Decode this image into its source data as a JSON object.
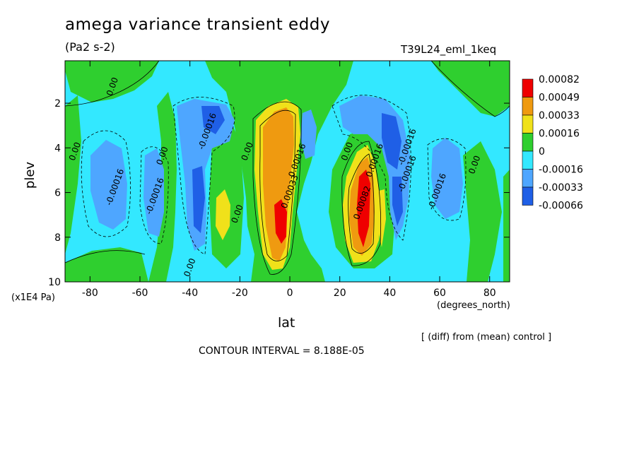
{
  "header": {
    "title": "amega variance transient eddy",
    "units": "(Pa2 s-2)",
    "run": "T39L24_eml_1keq"
  },
  "footer": {
    "y_units": "(x1E4 Pa)",
    "x_units": "(degrees_north)",
    "x_label": "lat",
    "note": "[ (diff) from (mean) control ]",
    "contour_interval": "CONTOUR INTERVAL = 8.188E-05"
  },
  "chart_data": {
    "type": "heatmap",
    "title": "amega variance transient eddy",
    "subtitle": "(Pa2 s-2)",
    "xlabel": "lat",
    "ylabel": "plev",
    "x_units": "(degrees_north)",
    "y_units": "(x1E4 Pa)",
    "xlim": [
      -90,
      88
    ],
    "ylim": [
      10,
      0.1
    ],
    "x_ticks": [
      -80,
      -60,
      -40,
      -20,
      0,
      20,
      40,
      60,
      80
    ],
    "y_ticks": [
      2,
      4,
      6,
      8,
      10
    ],
    "legend_placement": "right",
    "colorbar": {
      "labels": [
        "0.00082",
        "0.00049",
        "0.00033",
        "0.00016",
        "0",
        "-0.00016",
        "-0.00033",
        "-0.00066"
      ],
      "colors": [
        "#ef0000",
        "#ef9a10",
        "#f0e11a",
        "#2fcf2f",
        "#33e8ff",
        "#4ea6ff",
        "#1f5fe6"
      ]
    },
    "contour_labels": [
      {
        "x": -70,
        "y": 1.3,
        "text": "0.00"
      },
      {
        "x": -85,
        "y": 4.2,
        "text": "0.00"
      },
      {
        "x": -69,
        "y": 5.8,
        "text": "-0.00016"
      },
      {
        "x": -53,
        "y": 6.2,
        "text": "-0.00016"
      },
      {
        "x": -50,
        "y": 4.4,
        "text": "0.00"
      },
      {
        "x": -32,
        "y": 3.3,
        "text": "-0.00016"
      },
      {
        "x": -16,
        "y": 4.2,
        "text": "0.00"
      },
      {
        "x": -20,
        "y": 7.0,
        "text": "0.00"
      },
      {
        "x": -39,
        "y": 9.4,
        "text": "0.00"
      },
      {
        "x": 1,
        "y": 6.0,
        "text": "0.00033"
      },
      {
        "x": 4,
        "y": 4.6,
        "text": "0.00016"
      },
      {
        "x": 24,
        "y": 4.2,
        "text": "0.00"
      },
      {
        "x": 30,
        "y": 6.5,
        "text": "0.00082"
      },
      {
        "x": 35,
        "y": 4.6,
        "text": "0.00016"
      },
      {
        "x": 48,
        "y": 4.0,
        "text": "-0.00016"
      },
      {
        "x": 48,
        "y": 5.2,
        "text": "-0.00016"
      },
      {
        "x": 60,
        "y": 6.0,
        "text": "-0.00016"
      },
      {
        "x": 75,
        "y": 4.8,
        "text": "0.00"
      }
    ],
    "regions": [
      {
        "id": "z1",
        "color": "#33e8ff",
        "cx": 7,
        "cy": 5.5,
        "rx": 10,
        "ry": 6,
        "level": "-0.00016"
      },
      {
        "id": "z2",
        "color": "#33e8ff",
        "cx": -25,
        "cy": 5.5,
        "rx": 8,
        "ry": 6,
        "level": "-0.00016"
      }
    ]
  }
}
